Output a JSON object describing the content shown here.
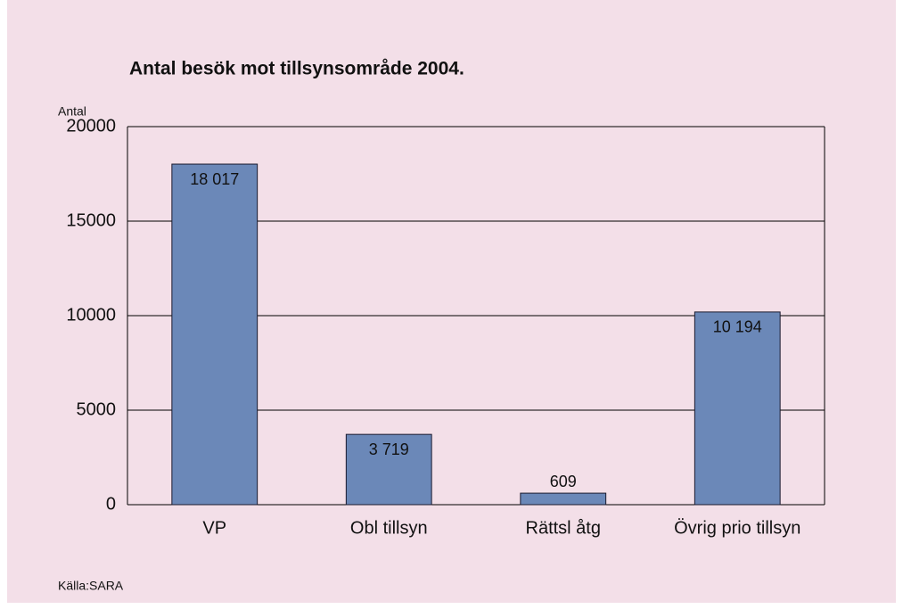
{
  "chart_data": {
    "type": "bar",
    "title": "Antal besök mot tillsynsområde 2004.",
    "y_label": "Antal",
    "source": "Källa:SARA",
    "categories": [
      "VP",
      "Obl tillsyn",
      "Rättsl åtg",
      "Övrig prio tillsyn"
    ],
    "values": [
      18017,
      3719,
      609,
      10194
    ],
    "value_labels": [
      "18 017",
      "3 719",
      "609",
      "10 194"
    ],
    "color": "#6b88b8",
    "ylim": [
      0,
      20000
    ],
    "yticks": [
      0,
      5000,
      10000,
      15000,
      20000
    ],
    "grid": true
  }
}
